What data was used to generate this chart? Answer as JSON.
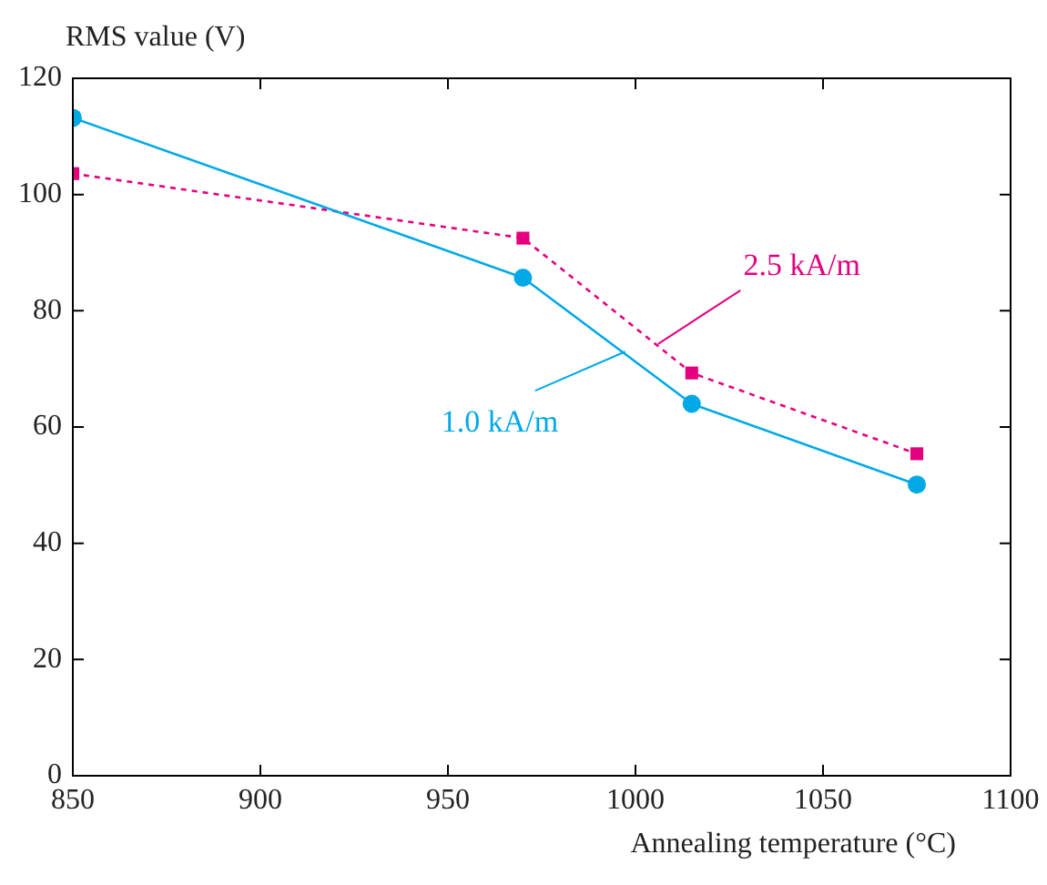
{
  "chart_data": {
    "type": "line",
    "xlabel": "Annealing temperature (°C)",
    "ylabel": "RMS value (V)",
    "xlim": [
      850,
      1100
    ],
    "xticks": [
      850,
      900,
      950,
      1000,
      1050,
      1100
    ],
    "ylim": [
      0,
      120
    ],
    "yticks": [
      0,
      20,
      40,
      60,
      80,
      100,
      120
    ],
    "x": [
      850,
      970,
      1015,
      1075
    ],
    "series": [
      {
        "name": "1.0 kA/m",
        "color": "#00a9e6",
        "values": [
          113.2,
          85.7,
          64,
          50.1
        ],
        "marker": "circle",
        "line_style": "solid"
      },
      {
        "name": "2.5 kA/m",
        "color": "#e4007f",
        "values": [
          103.6,
          92.5,
          69.3,
          55.4
        ],
        "marker": "square",
        "line_style": "dashed"
      }
    ],
    "grid": false
  }
}
